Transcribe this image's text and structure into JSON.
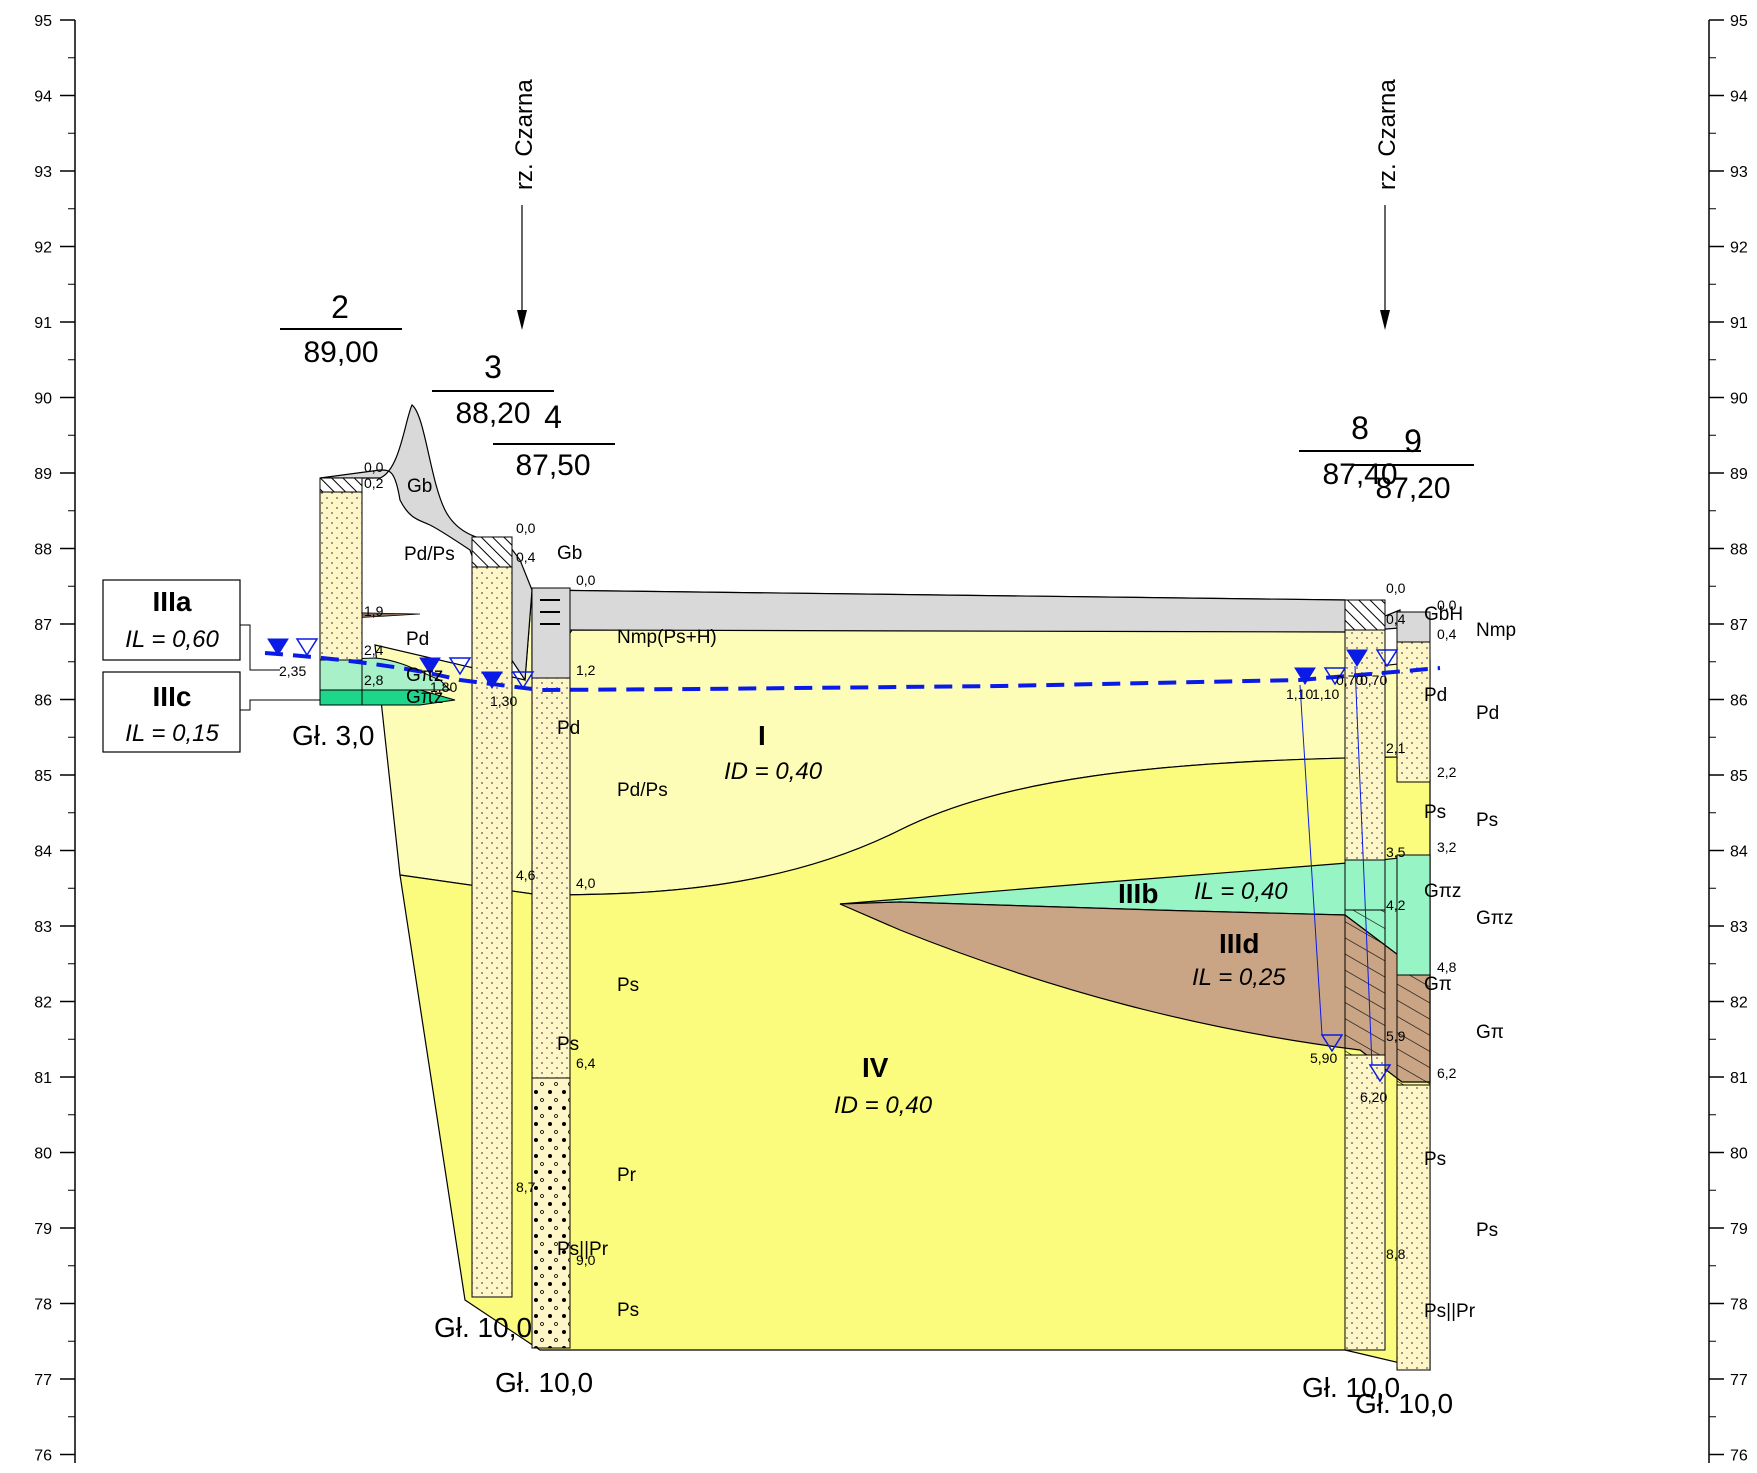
{
  "axis": {
    "ticks": [
      "76",
      "77",
      "78",
      "79",
      "80",
      "81",
      "82",
      "83",
      "84",
      "85",
      "86",
      "87",
      "88",
      "89",
      "90",
      "91",
      "92",
      "93",
      "94",
      "95"
    ]
  },
  "rivers": [
    {
      "label": "rz. Czarna"
    },
    {
      "label": "rz. Czarna"
    }
  ],
  "boreholes": [
    {
      "number": "2",
      "elevation": "89,00",
      "final_depth": "Gł. 3,0"
    },
    {
      "number": "3",
      "elevation": "88,20",
      "final_depth": "Gł. 10,0"
    },
    {
      "number": "4",
      "elevation": "87,50",
      "final_depth": "Gł. 10,0"
    },
    {
      "number": "8",
      "elevation": "87,40",
      "final_depth": "Gł. 10,0"
    },
    {
      "number": "9",
      "elevation": "87,20",
      "final_depth": "Gł. 10,0"
    }
  ],
  "layers": {
    "I": {
      "name": "I",
      "param": "ID = 0,40"
    },
    "IIIa": {
      "name": "IIIa",
      "param": "IL = 0,60"
    },
    "IIIb": {
      "name": "IIIb",
      "param": "IL = 0,40"
    },
    "IIIc": {
      "name": "IIIc",
      "param": "IL = 0,15"
    },
    "IIId": {
      "name": "IIId",
      "param": "IL = 0,25"
    },
    "IV": {
      "name": "IV",
      "param": "ID = 0,40"
    }
  },
  "soil_labels": [
    "Gb",
    "Pd/Ps",
    "Pd",
    "Gπz",
    "Gπz",
    "Gb",
    "Nmp(Ps+H)",
    "Pd",
    "Pd/Ps",
    "Ps",
    "Ps",
    "Pr",
    "Ps||Pr",
    "Ps",
    "GbH",
    "Nmp",
    "Pd",
    "Pd",
    "Ps",
    "Ps",
    "Gπz",
    "Gπz",
    "Gπ",
    "Gπ",
    "Ps",
    "Ps",
    "Ps||Pr"
  ],
  "depth_marks": [
    "0,0",
    "0,2",
    "1,9",
    "2,4",
    "2,8",
    "2,35",
    "0,0",
    "0,4",
    "1,80",
    "1,30",
    "4,6",
    "8,7",
    "0,0",
    "1,2",
    "4,0",
    "6,4",
    "9,0",
    "0,0",
    "0,4",
    "1,10",
    "1,10",
    "3,5",
    "4,2",
    "5,9",
    "5,90",
    "8,8",
    "0,0",
    "0,4",
    "0,70",
    "0,70",
    "2,1",
    "2,2",
    "3,2",
    "4,8",
    "6,2",
    "6,20"
  ],
  "colors": {
    "layer_I": "#fdfdb7",
    "layer_IV": "#fbfb7d",
    "layer_IIIb": "#97f5c5",
    "layer_IIIa": "#a8f0c8",
    "layer_IIIc": "#1ed68a",
    "layer_IIId": "#c9a585",
    "fill_ground": "#d9d9d9",
    "water_table": "#0a1be6",
    "borehole_fill": "#fff6c8"
  }
}
